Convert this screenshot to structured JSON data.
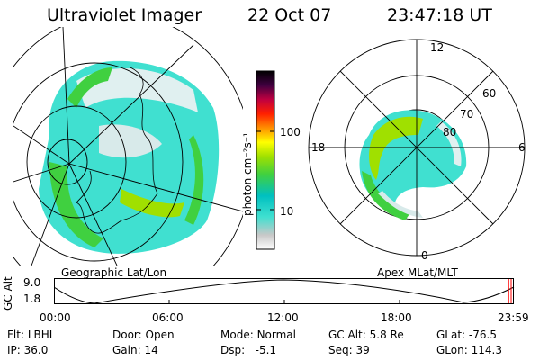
{
  "header": {
    "title": "Ultraviolet Imager",
    "date": "22 Oct 07",
    "time": "23:47:18 UT"
  },
  "colorbar": {
    "unit_label": "photon cm⁻²s⁻¹",
    "ticks": [
      "100",
      "10"
    ],
    "scale": "log",
    "colors": [
      "#ffffff",
      "#c8c8c8",
      "#40e0d0",
      "#00c0c0",
      "#40d040",
      "#a0e000",
      "#ffff00",
      "#ff9000",
      "#ff2000",
      "#c00040",
      "#400040",
      "#000000"
    ]
  },
  "left_map": {
    "label": "Geographic Lat/Lon"
  },
  "right_map": {
    "label": "Apex MLat/MLT",
    "mlt_labels": [
      "12",
      "18",
      "6",
      "0"
    ],
    "lat_labels": [
      "60",
      "70",
      "80"
    ]
  },
  "altitude_plot": {
    "ylabel": "GC Alt",
    "yticks": [
      "9.0",
      "1.8"
    ],
    "xticks": [
      "00:00",
      "06:00",
      "12:00",
      "18:00",
      "23:59"
    ],
    "marker_color": "#ff0000"
  },
  "info": {
    "row1": [
      {
        "key": "Flt:",
        "value": "LBHL"
      },
      {
        "key": "Door:",
        "value": "Open"
      },
      {
        "key": "Mode:",
        "value": "Normal"
      },
      {
        "key": "GC Alt:",
        "value": "5.8 Re"
      },
      {
        "key": "GLat:",
        "value": "-76.5"
      }
    ],
    "row2": [
      {
        "key": "IP:",
        "value": "36.0"
      },
      {
        "key": "Gain:",
        "value": "14"
      },
      {
        "key": "Dsp:",
        "value": "-5.1"
      },
      {
        "key": "Seq:",
        "value": "39"
      },
      {
        "key": "GLon:",
        "value": "114.3"
      }
    ]
  }
}
